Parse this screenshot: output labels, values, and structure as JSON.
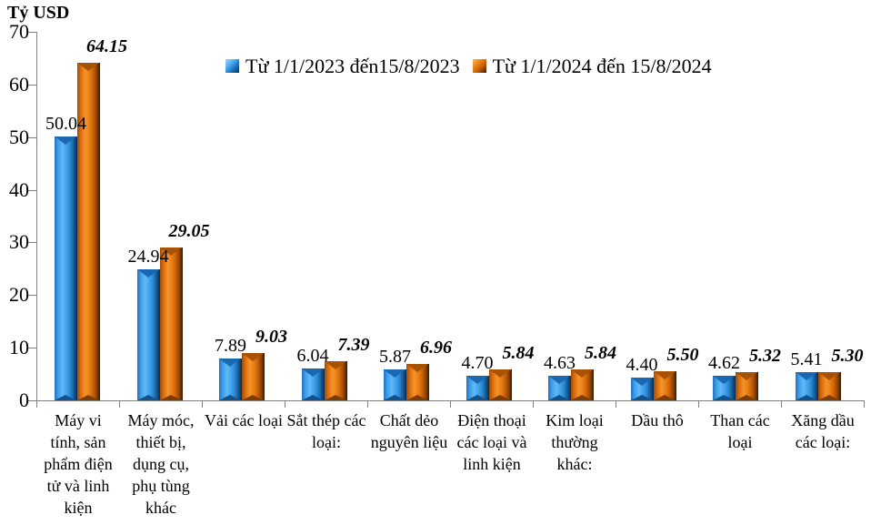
{
  "colors": {
    "series_2023": "#2E95E1",
    "series_2024": "#DF6F0D",
    "axis": "#7F7F7F",
    "text": "#000000",
    "background": "#FFFFFF"
  },
  "chart_data": {
    "type": "bar",
    "unit_label": "Tỷ USD",
    "ylim": [
      0,
      70
    ],
    "ytick_step": 10,
    "yticks": [
      0,
      10,
      20,
      30,
      40,
      50,
      60,
      70
    ],
    "grid": false,
    "legend_position": "top-center",
    "value_label_decimals": 2,
    "categories": [
      "Máy vi tính, sản phẩm điện tử và linh kiện",
      "Máy móc, thiết bị, dụng cụ, phụ tùng khác",
      "Vải các loại",
      "Sắt thép các loại:",
      "Chất dẻo nguyên liệu",
      "Điện thoại các loại và linh kiện",
      "Kim loại thường khác:",
      "Dầu thô",
      "Than các loại",
      "Xăng dầu các loại:"
    ],
    "series": [
      {
        "name": "Từ 1/1/2023 đến15/8/2023",
        "color": "#2E95E1",
        "label_style": "regular",
        "values": [
          50.04,
          24.94,
          7.89,
          6.04,
          5.87,
          4.7,
          4.63,
          4.4,
          4.62,
          5.41
        ]
      },
      {
        "name": "Từ 1/1/2024 đến 15/8/2024",
        "color": "#DF6F0D",
        "label_style": "bold-italic",
        "values": [
          64.15,
          29.05,
          9.03,
          7.39,
          6.96,
          5.84,
          5.84,
          5.5,
          5.32,
          5.3
        ]
      }
    ]
  }
}
